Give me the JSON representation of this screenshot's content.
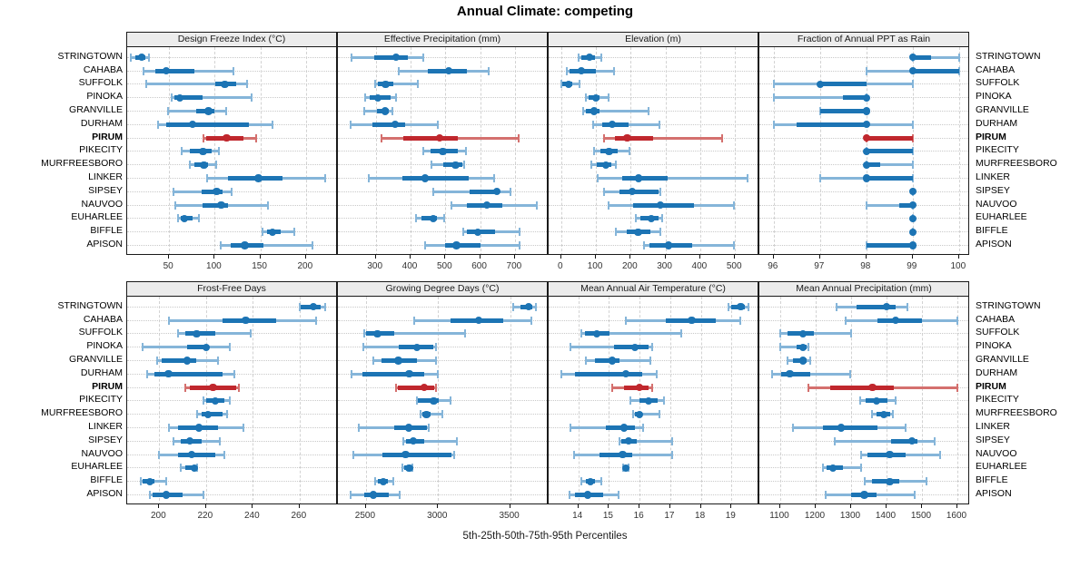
{
  "title": "Annual Climate: competing",
  "xlabel": "5th-25th-50th-75th-95th Percentiles",
  "highlight_site": "PIRUM",
  "colors": {
    "series": "#1c74b4",
    "series_light": "#85b5d9",
    "highlight": "#c0272d",
    "highlight_light": "#d4706e",
    "grid": "#c9c9c9",
    "strip_bg": "#ececec",
    "border": "#1a1a1a"
  },
  "chart_data": {
    "type": "dotplot-percentiles",
    "percentile_labels": [
      "5th",
      "25th",
      "50th",
      "75th",
      "95th"
    ],
    "legend_position": "none",
    "grid": true,
    "sites": [
      "STRINGTOWN",
      "CAHABA",
      "SUFFOLK",
      "PINOKA",
      "GRANVILLE",
      "DURHAM",
      "PIRUM",
      "PIKECITY",
      "MURFREESBORO",
      "LINKER",
      "SIPSEY",
      "NAUVOO",
      "EUHARLEE",
      "BIFFLE",
      "APISON"
    ],
    "panels": [
      {
        "label": "Design Freeze Index (°C)",
        "grid_row": 0,
        "grid_col": 0,
        "domain": [
          4,
          235
        ],
        "ticks": [
          50,
          100,
          150,
          200
        ],
        "values": [
          [
            8,
            13,
            20,
            24,
            28
          ],
          [
            22,
            35,
            47,
            78,
            120
          ],
          [
            25,
            101,
            111,
            124,
            135
          ],
          [
            53,
            56,
            62,
            87,
            140
          ],
          [
            49,
            80,
            93,
            100,
            112
          ],
          [
            38,
            47,
            76,
            137,
            163
          ],
          [
            88,
            91,
            113,
            131,
            145
          ],
          [
            64,
            73,
            87,
            97,
            105
          ],
          [
            73,
            78,
            88,
            93,
            102
          ],
          [
            92,
            114,
            148,
            174,
            221
          ],
          [
            55,
            86,
            102,
            109,
            118
          ],
          [
            57,
            87,
            107,
            115,
            158
          ],
          [
            60,
            63,
            67,
            76,
            83
          ],
          [
            152,
            157,
            163,
            172,
            187
          ],
          [
            107,
            117,
            133,
            153,
            207
          ]
        ]
      },
      {
        "label": "Effective Precipitation (mm)",
        "grid_row": 0,
        "grid_col": 1,
        "domain": [
          191,
          797
        ],
        "ticks": [
          300,
          400,
          500,
          600,
          700
        ],
        "values": [
          [
            230,
            295,
            358,
            393,
            437
          ],
          [
            367,
            450,
            510,
            561,
            624
          ],
          [
            297,
            305,
            328,
            350,
            422
          ],
          [
            269,
            281,
            306,
            341,
            358
          ],
          [
            267,
            302,
            326,
            337,
            348
          ],
          [
            228,
            291,
            356,
            384,
            478
          ],
          [
            317,
            378,
            484,
            536,
            711
          ],
          [
            437,
            458,
            493,
            537,
            558
          ],
          [
            461,
            493,
            529,
            548,
            554
          ],
          [
            280,
            376,
            441,
            567,
            641
          ],
          [
            465,
            570,
            648,
            656,
            687
          ],
          [
            517,
            561,
            619,
            663,
            763
          ],
          [
            416,
            432,
            465,
            476,
            497
          ],
          [
            552,
            561,
            593,
            644,
            713
          ],
          [
            441,
            500,
            532,
            602,
            713
          ]
        ]
      },
      {
        "label": "Elevation (m)",
        "grid_row": 0,
        "grid_col": 2,
        "domain": [
          -36,
          570
        ],
        "ticks": [
          0,
          100,
          200,
          300,
          400,
          500
        ],
        "values": [
          [
            50,
            58,
            82,
            97,
            115
          ],
          [
            17,
            24,
            58,
            99,
            152
          ],
          [
            0,
            2,
            22,
            32,
            52
          ],
          [
            70,
            78,
            99,
            110,
            137
          ],
          [
            64,
            71,
            95,
            110,
            252
          ],
          [
            91,
            119,
            147,
            193,
            283
          ],
          [
            122,
            154,
            190,
            265,
            463
          ],
          [
            95,
            114,
            138,
            164,
            197
          ],
          [
            86,
            102,
            128,
            145,
            157
          ],
          [
            104,
            176,
            223,
            306,
            535
          ],
          [
            123,
            168,
            204,
            280,
            285
          ],
          [
            136,
            206,
            286,
            383,
            496
          ],
          [
            215,
            228,
            260,
            280,
            290
          ],
          [
            158,
            189,
            221,
            258,
            284
          ],
          [
            237,
            254,
            308,
            376,
            496
          ]
        ]
      },
      {
        "label": "Fraction of Annual PPT as Rain",
        "grid_row": 0,
        "grid_col": 3,
        "domain": [
          95.69,
          100.24
        ],
        "ticks": [
          96,
          97,
          98,
          99,
          100
        ],
        "values": [
          [
            99,
            99,
            99,
            99.4,
            100
          ],
          [
            98,
            99,
            99,
            100,
            100
          ],
          [
            96,
            97,
            97,
            98,
            99
          ],
          [
            96,
            97.5,
            98,
            98,
            98
          ],
          [
            97,
            97,
            98,
            98,
            98
          ],
          [
            96,
            96.5,
            98,
            98,
            99
          ],
          [
            98,
            98,
            98,
            99,
            99
          ],
          [
            98,
            98,
            98,
            99,
            99
          ],
          [
            98,
            98,
            98,
            98.3,
            99
          ],
          [
            97,
            98,
            98,
            99,
            99
          ],
          [
            99,
            99,
            99,
            99,
            99
          ],
          [
            98,
            98.7,
            99,
            99,
            99
          ],
          [
            99,
            99,
            99,
            99,
            99
          ],
          [
            99,
            99,
            99,
            99,
            99
          ],
          [
            98,
            98,
            99,
            99,
            99
          ]
        ]
      },
      {
        "label": "Frost-Free Days",
        "grid_row": 1,
        "grid_col": 0,
        "domain": [
          186.3,
          276.4
        ],
        "ticks": [
          200,
          220,
          240,
          260
        ],
        "values": [
          [
            260,
            260.5,
            266,
            269,
            271
          ],
          [
            204,
            227,
            237,
            250,
            267
          ],
          [
            208,
            211,
            216,
            224,
            239
          ],
          [
            193,
            212,
            220,
            221,
            230
          ],
          [
            199,
            201,
            212,
            216,
            225
          ],
          [
            195,
            198,
            204,
            227,
            232
          ],
          [
            211,
            213,
            223,
            233,
            234
          ],
          [
            219,
            220,
            224,
            228,
            230
          ],
          [
            216,
            218,
            221,
            227,
            229
          ],
          [
            204,
            208,
            217,
            225,
            236
          ],
          [
            206,
            209,
            213,
            218,
            226
          ],
          [
            200,
            208,
            214,
            224,
            228
          ],
          [
            209,
            211,
            215,
            215.5,
            216
          ],
          [
            192,
            193,
            196,
            198,
            203
          ],
          [
            196,
            197,
            203,
            210,
            219
          ]
        ]
      },
      {
        "label": "Growing Degree Days (°C)",
        "grid_row": 1,
        "grid_col": 1,
        "domain": [
          2305,
          3767
        ],
        "ticks": [
          2500,
          3000,
          3500
        ],
        "values": [
          [
            3520,
            3570,
            3630,
            3655,
            3680
          ],
          [
            2835,
            3085,
            3280,
            3455,
            3645
          ],
          [
            2485,
            2500,
            2580,
            2695,
            3190
          ],
          [
            2480,
            2730,
            2855,
            2970,
            2985
          ],
          [
            2550,
            2605,
            2725,
            2855,
            2985
          ],
          [
            2400,
            2475,
            2800,
            2905,
            3000
          ],
          [
            2710,
            2720,
            2905,
            2975,
            2985
          ],
          [
            2850,
            2860,
            2970,
            3005,
            3085
          ],
          [
            2875,
            2890,
            2920,
            2950,
            3030
          ],
          [
            2450,
            2695,
            2795,
            2925,
            2935
          ],
          [
            2760,
            2775,
            2830,
            2905,
            3130
          ],
          [
            2410,
            2615,
            2775,
            3095,
            3110
          ],
          [
            2755,
            2765,
            2800,
            2810,
            2820
          ],
          [
            2560,
            2580,
            2620,
            2650,
            2690
          ],
          [
            2395,
            2490,
            2550,
            2655,
            2735
          ]
        ]
      },
      {
        "label": "Mean Annual Air Temperature (°C)",
        "grid_row": 1,
        "grid_col": 2,
        "domain": [
          13.03,
          19.91
        ],
        "ticks": [
          14,
          15,
          16,
          17,
          18,
          19
        ],
        "values": [
          [
            18.9,
            19.0,
            19.3,
            19.45,
            19.55
          ],
          [
            15.55,
            16.85,
            17.7,
            18.5,
            19.3
          ],
          [
            14.1,
            14.2,
            14.6,
            15.0,
            17.35
          ],
          [
            13.75,
            15.15,
            15.85,
            16.3,
            16.4
          ],
          [
            14.25,
            14.55,
            15.1,
            15.35,
            16.35
          ],
          [
            13.45,
            13.9,
            15.55,
            16.1,
            16.55
          ],
          [
            15.1,
            15.5,
            16.0,
            16.3,
            16.4
          ],
          [
            15.7,
            16.0,
            16.3,
            16.6,
            16.8
          ],
          [
            15.8,
            15.85,
            16.0,
            16.1,
            16.65
          ],
          [
            13.75,
            14.9,
            15.5,
            15.85,
            16.1
          ],
          [
            15.35,
            15.4,
            15.65,
            15.9,
            17.05
          ],
          [
            13.85,
            14.7,
            15.45,
            15.75,
            17.05
          ],
          [
            15.45,
            15.5,
            15.55,
            15.6,
            15.65
          ],
          [
            14.1,
            14.25,
            14.4,
            14.55,
            14.75
          ],
          [
            13.7,
            13.9,
            14.3,
            14.8,
            15.3
          ]
        ]
      },
      {
        "label": "Mean Annual Precipitation (mm)",
        "grid_row": 1,
        "grid_col": 3,
        "domain": [
          1041,
          1636
        ],
        "ticks": [
          1100,
          1200,
          1300,
          1400,
          1500,
          1600
        ],
        "values": [
          [
            1260,
            1315,
            1400,
            1425,
            1460
          ],
          [
            1285,
            1375,
            1425,
            1500,
            1600
          ],
          [
            1100,
            1120,
            1165,
            1195,
            1300
          ],
          [
            1100,
            1145,
            1165,
            1175,
            1180
          ],
          [
            1120,
            1135,
            1165,
            1175,
            1185
          ],
          [
            1078,
            1103,
            1127,
            1185,
            1298
          ],
          [
            1180,
            1240,
            1360,
            1420,
            1600
          ],
          [
            1325,
            1340,
            1372,
            1403,
            1426
          ],
          [
            1358,
            1372,
            1392,
            1411,
            1417
          ],
          [
            1135,
            1220,
            1272,
            1375,
            1455
          ],
          [
            1253,
            1413,
            1472,
            1488,
            1535
          ],
          [
            1327,
            1347,
            1409,
            1454,
            1550
          ],
          [
            1221,
            1230,
            1249,
            1276,
            1327
          ],
          [
            1338,
            1358,
            1409,
            1437,
            1512
          ],
          [
            1227,
            1300,
            1337,
            1372,
            1480
          ]
        ]
      }
    ]
  }
}
